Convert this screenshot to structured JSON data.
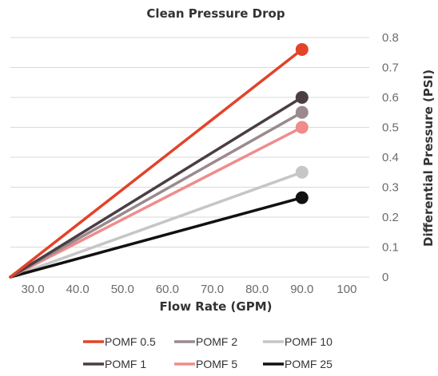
{
  "chart_data": {
    "type": "line",
    "title": "Clean Pressure Drop",
    "xlabel": "Flow Rate (GPM)",
    "ylabel": "Differential Pressure (PSI)",
    "xlim": [
      25,
      105
    ],
    "ylim": [
      0,
      0.8
    ],
    "x_ticks": [
      "30.0",
      "40.0",
      "50.0",
      "60.0",
      "70.0",
      "80.0",
      "90.0",
      "100"
    ],
    "x_tick_values": [
      30,
      40,
      50,
      60,
      70,
      80,
      90,
      100
    ],
    "y_ticks": [
      "0",
      "0.1",
      "0.2",
      "0.3",
      "0.4",
      "0.5",
      "0.6",
      "0.7",
      "0.8"
    ],
    "y_tick_values": [
      0,
      0.1,
      0.2,
      0.3,
      0.4,
      0.5,
      0.6,
      0.7,
      0.8
    ],
    "y_axis_position": "right",
    "grid": true,
    "legend_position": "bottom",
    "series": [
      {
        "name": "POMF 0.5",
        "color": "#e2432a",
        "points": [
          [
            25,
            0
          ],
          [
            90,
            0.76
          ]
        ]
      },
      {
        "name": "POMF 2",
        "color": "#9a8a8e",
        "points": [
          [
            25,
            0
          ],
          [
            90,
            0.55
          ]
        ]
      },
      {
        "name": "POMF 10",
        "color": "#c6c6c6",
        "points": [
          [
            25,
            0
          ],
          [
            90,
            0.35
          ]
        ]
      },
      {
        "name": "POMF 1",
        "color": "#4a3e44",
        "points": [
          [
            25,
            0
          ],
          [
            90,
            0.6
          ]
        ]
      },
      {
        "name": "POMF 5",
        "color": "#ef8c8c",
        "points": [
          [
            25,
            0
          ],
          [
            90,
            0.5
          ]
        ]
      },
      {
        "name": "POMF 25",
        "color": "#111111",
        "points": [
          [
            25,
            0
          ],
          [
            90,
            0.265
          ]
        ]
      }
    ],
    "draw_order": [
      2,
      5,
      4,
      1,
      3,
      0
    ]
  }
}
